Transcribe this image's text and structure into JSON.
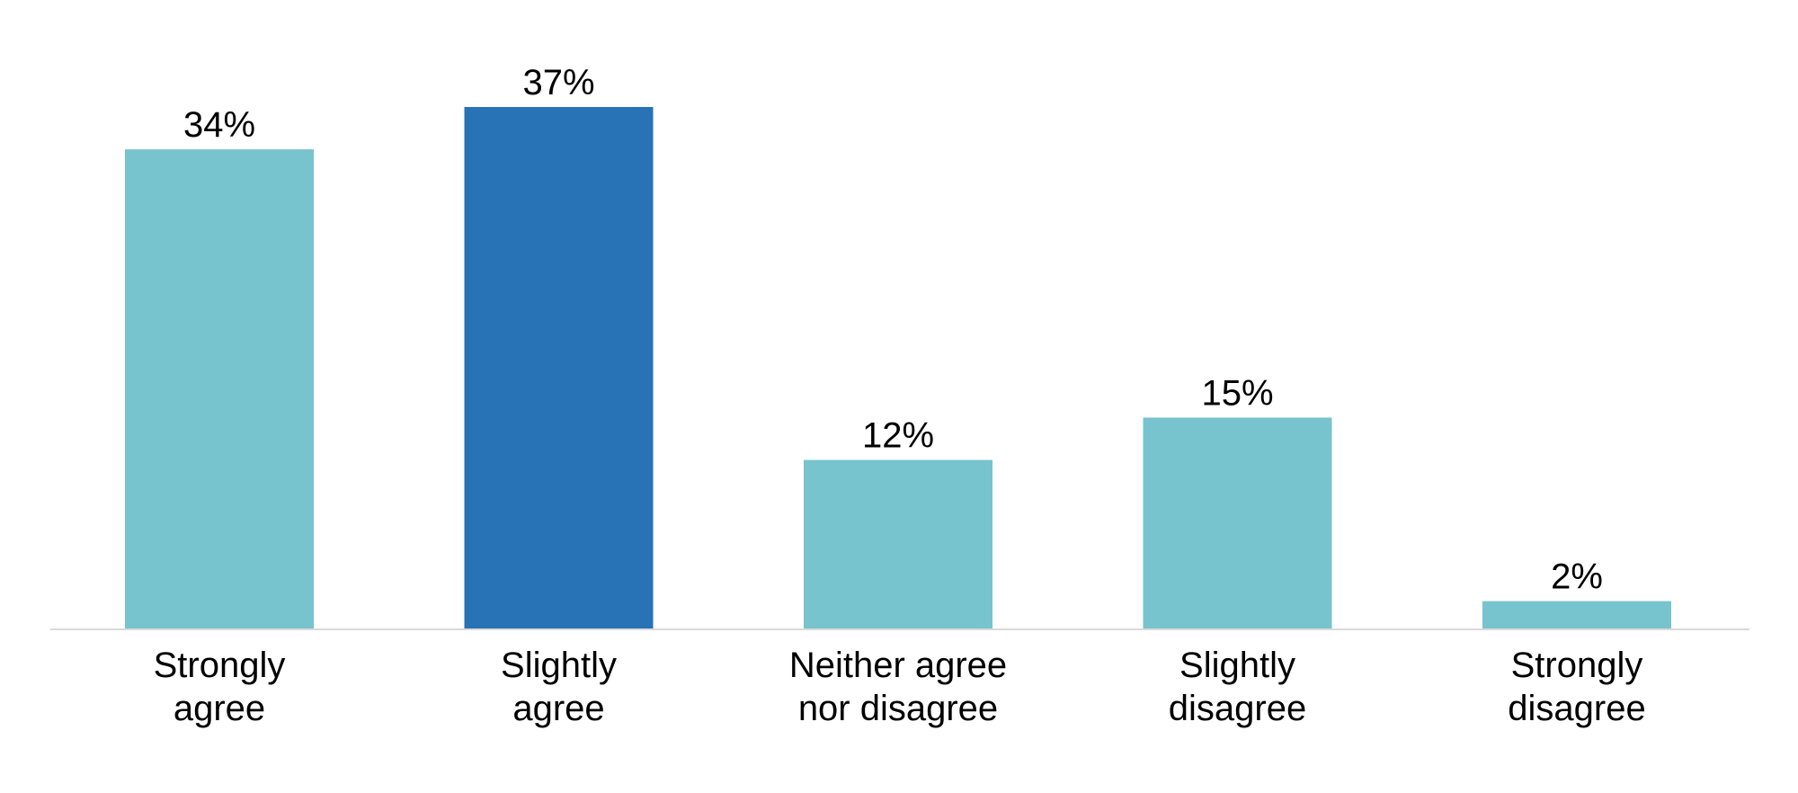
{
  "chart_data": {
    "type": "bar",
    "categories": [
      [
        "Strongly",
        "agree"
      ],
      [
        "Slightly",
        "agree"
      ],
      [
        "Neither agree",
        "nor disagree"
      ],
      [
        "Slightly",
        "disagree"
      ],
      [
        "Strongly",
        "disagree"
      ]
    ],
    "values": [
      34,
      37,
      12,
      15,
      2
    ],
    "data_labels": [
      "34%",
      "37%",
      "12%",
      "15%",
      "2%"
    ],
    "unit": "%",
    "ylim": [
      0,
      37
    ],
    "grid": false,
    "legend": "none",
    "colors": {
      "default_bar": "#77C3CE",
      "highlight_bar": "#2872B6",
      "baseline": "#D9D9D9"
    },
    "highlight_index": 1
  }
}
